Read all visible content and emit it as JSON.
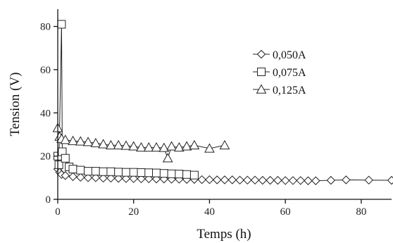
{
  "chart_data": {
    "type": "line",
    "xlabel": "Temps (h)",
    "ylabel": "Tension (V)",
    "xlim": [
      0,
      88
    ],
    "ylim": [
      0,
      88
    ],
    "xticks": [
      0,
      20,
      40,
      60,
      80
    ],
    "yticks": [
      0,
      20,
      40,
      60,
      80
    ],
    "legend_position": "top-right",
    "grid": false,
    "series": [
      {
        "name": "0,050A",
        "marker": "diamond",
        "x": [
          0,
          0.5,
          1,
          2,
          4,
          6,
          8,
          10,
          12,
          14,
          16,
          18,
          20,
          22,
          24,
          26,
          28,
          30,
          32,
          34,
          36,
          38,
          40,
          42,
          44,
          46,
          48,
          50,
          52,
          54,
          56,
          58,
          60,
          62,
          64,
          66,
          68,
          72,
          76,
          82,
          88
        ],
        "y": [
          14,
          12.5,
          11.5,
          11,
          10.5,
          10.2,
          10,
          10,
          9.8,
          9.8,
          9.7,
          9.6,
          9.6,
          9.5,
          9.5,
          9.4,
          9.4,
          9.3,
          9.3,
          9.2,
          9.2,
          9.1,
          9.1,
          9,
          9,
          9,
          8.9,
          8.9,
          8.9,
          8.8,
          8.8,
          8.8,
          8.7,
          8.7,
          8.7,
          8.6,
          8.6,
          8.8,
          9,
          8.9,
          8.8
        ]
      },
      {
        "name": "0,075A",
        "marker": "square",
        "x": [
          0,
          0.3,
          1,
          1.2,
          2,
          3,
          4,
          6,
          8,
          10,
          12,
          14,
          16,
          18,
          20,
          22,
          24,
          26,
          28,
          30,
          32,
          34,
          36
        ],
        "y": [
          20,
          16,
          81,
          22,
          19,
          15,
          14,
          13.5,
          13,
          13,
          12.8,
          12.8,
          12.6,
          12.5,
          12.5,
          12.4,
          12.3,
          12.2,
          12,
          11.8,
          11.7,
          11.5,
          11.2
        ]
      },
      {
        "name": "0,125A",
        "marker": "triangle",
        "x": [
          0,
          0.5,
          1,
          2,
          4,
          6,
          8,
          10,
          12,
          14,
          16,
          18,
          20,
          22,
          24,
          26,
          28,
          29,
          30,
          32,
          34,
          36,
          40,
          44
        ],
        "y": [
          33,
          29,
          28,
          27.5,
          27,
          26.8,
          26.5,
          26,
          25.5,
          25,
          25,
          24.8,
          24.5,
          24,
          24,
          24,
          23.8,
          19,
          24.5,
          24,
          24.5,
          25,
          23.5,
          25
        ]
      }
    ]
  }
}
